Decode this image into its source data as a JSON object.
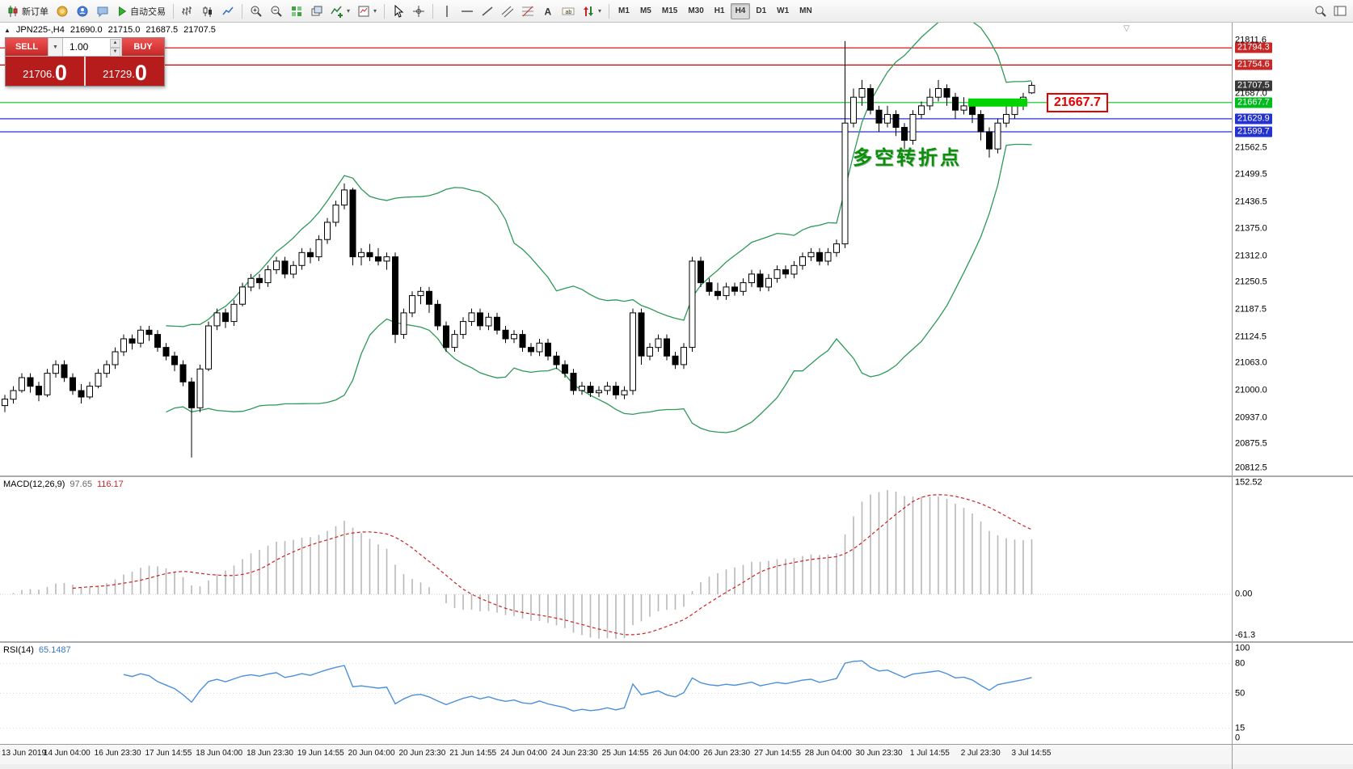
{
  "toolbar": {
    "new_order": "新订单",
    "autotrading": "自动交易",
    "timeframes": [
      "M1",
      "M5",
      "M15",
      "M30",
      "H1",
      "H4",
      "D1",
      "W1",
      "MN"
    ],
    "active_timeframe": "H4"
  },
  "info": {
    "symbol": "JPN225-,H4",
    "open": "21690.0",
    "high": "21715.0",
    "low": "21687.5",
    "close": "21707.5"
  },
  "trade": {
    "sell_label": "SELL",
    "buy_label": "BUY",
    "volume": "1.00",
    "sell_price_small": "21706.",
    "sell_price_big": "0",
    "buy_price_small": "21729.",
    "buy_price_big": "0"
  },
  "annotation": {
    "text": "多空转折点"
  },
  "callout": {
    "text": "21667.7"
  },
  "macd": {
    "name": "MACD(12,26,9)",
    "main_value": "97.65",
    "signal_value": "116.17",
    "scale": [
      {
        "text": "152.52",
        "value": 152.52
      },
      {
        "text": "0.00",
        "value": 0
      },
      {
        "text": "-61.3",
        "value": -61.3
      }
    ]
  },
  "rsi": {
    "name": "RSI(14)",
    "value": "65.1487",
    "scale": [
      {
        "text": "100",
        "value": 100
      },
      {
        "text": "80",
        "value": 80
      },
      {
        "text": "50",
        "value": 50
      },
      {
        "text": "15",
        "value": 15
      },
      {
        "text": "0",
        "value": 0
      }
    ]
  },
  "price_scale": {
    "labels": [
      {
        "value": "21811.6",
        "price": 21811.6,
        "type": "plain"
      },
      {
        "value": "21794.3",
        "price": 21794.3,
        "type": "red"
      },
      {
        "value": "21754.6",
        "price": 21754.6,
        "type": "red"
      },
      {
        "value": "21707.5",
        "price": 21707.5,
        "type": "dark"
      },
      {
        "value": "21687.0",
        "price": 21687.0,
        "type": "plain"
      },
      {
        "value": "21667.7",
        "price": 21667.7,
        "type": "green"
      },
      {
        "value": "21629.9",
        "price": 21629.9,
        "type": "blue"
      },
      {
        "value": "21599.7",
        "price": 21599.7,
        "type": "blue"
      },
      {
        "value": "21562.5",
        "price": 21562.5,
        "type": "plain"
      },
      {
        "value": "21499.5",
        "price": 21499.5,
        "type": "plain"
      },
      {
        "value": "21436.5",
        "price": 21436.5,
        "type": "plain"
      },
      {
        "value": "21375.0",
        "price": 21375.0,
        "type": "plain"
      },
      {
        "value": "21312.0",
        "price": 21312.0,
        "type": "plain"
      },
      {
        "value": "21250.5",
        "price": 21250.5,
        "type": "plain"
      },
      {
        "value": "21187.5",
        "price": 21187.5,
        "type": "plain"
      },
      {
        "value": "21124.5",
        "price": 21124.5,
        "type": "plain"
      },
      {
        "value": "21063.0",
        "price": 21063.0,
        "type": "plain"
      },
      {
        "value": "21000.0",
        "price": 21000.0,
        "type": "plain"
      },
      {
        "value": "20937.0",
        "price": 20937.0,
        "type": "plain"
      },
      {
        "value": "20875.5",
        "price": 20875.5,
        "type": "plain"
      },
      {
        "value": "20812.5",
        "price": 20812.5,
        "type": "plain"
      }
    ]
  },
  "time_axis": {
    "labels": [
      "13 Jun 2019",
      "14 Jun 04:00",
      "16 Jun 23:30",
      "17 Jun 14:55",
      "18 Jun 04:00",
      "18 Jun 23:30",
      "19 Jun 14:55",
      "20 Jun 04:00",
      "20 Jun 23:30",
      "21 Jun 14:55",
      "24 Jun 04:00",
      "24 Jun 23:30",
      "25 Jun 14:55",
      "26 Jun 04:00",
      "26 Jun 23:30",
      "27 Jun 14:55",
      "28 Jun 04:00",
      "30 Jun 23:30",
      "1 Jul 14:55",
      "2 Jul 23:30",
      "3 Jul 14:55"
    ]
  },
  "chart_data": {
    "type": "candlestick",
    "symbol": "JPN225-",
    "timeframe": "H4",
    "ylim": [
      20812.5,
      21811.6
    ],
    "indicators": [
      {
        "name": "Bollinger Bands",
        "period": 20,
        "deviation": 2
      },
      {
        "name": "MACD",
        "params": "12,26,9"
      },
      {
        "name": "RSI",
        "params": "14"
      }
    ],
    "colors": {
      "up_candle": "#ffffff",
      "down_candle": "#000000",
      "candle_outline": "#000000",
      "bands": "#2e9958",
      "macd_hist": "#b8b8b8",
      "macd_signal": "#cc2222",
      "rsi_line": "#4a90d9",
      "resistance_line": "#cc0000",
      "pivot_line": "#00c020",
      "support_line": "#2433cd",
      "highlight_zone": "#00d400"
    },
    "hlines": [
      {
        "price": 21794.3,
        "color": "#cc0000"
      },
      {
        "price": 21754.6,
        "color": "#cc0000"
      },
      {
        "price": 21667.7,
        "color": "#00c020"
      },
      {
        "price": 21629.9,
        "color": "#2433cd"
      },
      {
        "price": 21599.7,
        "color": "#2433cd"
      }
    ],
    "highlight_zone": {
      "price": 21667.7,
      "from_bar": 114,
      "to_bar": 120
    },
    "ohlc": [
      [
        20965,
        20990,
        20950,
        20980
      ],
      [
        20980,
        21010,
        20970,
        21000
      ],
      [
        21000,
        21040,
        20995,
        21030
      ],
      [
        21030,
        21040,
        20995,
        21010
      ],
      [
        21010,
        21020,
        20975,
        20990
      ],
      [
        20990,
        21050,
        20985,
        21040
      ],
      [
        21040,
        21070,
        21030,
        21060
      ],
      [
        21060,
        21070,
        21020,
        21030
      ],
      [
        21030,
        21040,
        20990,
        21000
      ],
      [
        21000,
        21015,
        20970,
        20985
      ],
      [
        20985,
        21020,
        20980,
        21010
      ],
      [
        21010,
        21050,
        21005,
        21040
      ],
      [
        21040,
        21070,
        21030,
        21060
      ],
      [
        21060,
        21100,
        21050,
        21090
      ],
      [
        21090,
        21130,
        21080,
        21120
      ],
      [
        21120,
        21130,
        21095,
        21110
      ],
      [
        21110,
        21150,
        21100,
        21140
      ],
      [
        21140,
        21150,
        21115,
        21130
      ],
      [
        21130,
        21140,
        21090,
        21100
      ],
      [
        21100,
        21110,
        21070,
        21080
      ],
      [
        21080,
        21090,
        21045,
        21060
      ],
      [
        21060,
        21070,
        21010,
        21020
      ],
      [
        21020,
        21030,
        20845,
        20960
      ],
      [
        20960,
        21060,
        20950,
        21050
      ],
      [
        21050,
        21160,
        21045,
        21150
      ],
      [
        21150,
        21190,
        21140,
        21180
      ],
      [
        21180,
        21190,
        21145,
        21160
      ],
      [
        21160,
        21210,
        21150,
        21200
      ],
      [
        21200,
        21250,
        21195,
        21240
      ],
      [
        21240,
        21270,
        21230,
        21260
      ],
      [
        21260,
        21270,
        21235,
        21250
      ],
      [
        21250,
        21290,
        21240,
        21280
      ],
      [
        21280,
        21310,
        21270,
        21300
      ],
      [
        21300,
        21310,
        21260,
        21270
      ],
      [
        21270,
        21300,
        21260,
        21290
      ],
      [
        21290,
        21330,
        21280,
        21320
      ],
      [
        21320,
        21330,
        21295,
        21310
      ],
      [
        21310,
        21360,
        21300,
        21350
      ],
      [
        21350,
        21400,
        21340,
        21390
      ],
      [
        21390,
        21440,
        21380,
        21430
      ],
      [
        21430,
        21480,
        21420,
        21465
      ],
      [
        21465,
        21470,
        21290,
        21310
      ],
      [
        21310,
        21330,
        21290,
        21320
      ],
      [
        21320,
        21340,
        21300,
        21310
      ],
      [
        21310,
        21330,
        21290,
        21300
      ],
      [
        21300,
        21320,
        21280,
        21310
      ],
      [
        21310,
        21320,
        21110,
        21130
      ],
      [
        21130,
        21190,
        21120,
        21180
      ],
      [
        21180,
        21230,
        21170,
        21220
      ],
      [
        21220,
        21240,
        21200,
        21230
      ],
      [
        21230,
        21240,
        21180,
        21200
      ],
      [
        21200,
        21210,
        21140,
        21150
      ],
      [
        21150,
        21160,
        21090,
        21100
      ],
      [
        21100,
        21140,
        21090,
        21130
      ],
      [
        21130,
        21170,
        21120,
        21160
      ],
      [
        21160,
        21190,
        21150,
        21180
      ],
      [
        21180,
        21190,
        21140,
        21150
      ],
      [
        21150,
        21180,
        21140,
        21170
      ],
      [
        21170,
        21180,
        21130,
        21140
      ],
      [
        21140,
        21150,
        21110,
        21120
      ],
      [
        21120,
        21140,
        21110,
        21130
      ],
      [
        21130,
        21140,
        21090,
        21100
      ],
      [
        21100,
        21110,
        21080,
        21090
      ],
      [
        21090,
        21120,
        21080,
        21110
      ],
      [
        21110,
        21120,
        21070,
        21080
      ],
      [
        21080,
        21090,
        21050,
        21060
      ],
      [
        21060,
        21070,
        21030,
        21040
      ],
      [
        21040,
        21050,
        20990,
        21000
      ],
      [
        21000,
        21020,
        20990,
        21010
      ],
      [
        21010,
        21020,
        20985,
        20995
      ],
      [
        20995,
        21010,
        20985,
        21000
      ],
      [
        21000,
        21020,
        20990,
        21010
      ],
      [
        21010,
        21020,
        20980,
        20990
      ],
      [
        20990,
        21010,
        20980,
        21000
      ],
      [
        21000,
        21190,
        20990,
        21180
      ],
      [
        21180,
        21190,
        21060,
        21080
      ],
      [
        21080,
        21110,
        21070,
        21100
      ],
      [
        21100,
        21130,
        21090,
        21120
      ],
      [
        21120,
        21130,
        21070,
        21080
      ],
      [
        21080,
        21090,
        21050,
        21060
      ],
      [
        21060,
        21110,
        21050,
        21100
      ],
      [
        21100,
        21310,
        21090,
        21300
      ],
      [
        21300,
        21310,
        21240,
        21250
      ],
      [
        21250,
        21260,
        21220,
        21230
      ],
      [
        21230,
        21250,
        21210,
        21220
      ],
      [
        21220,
        21250,
        21210,
        21240
      ],
      [
        21240,
        21250,
        21220,
        21230
      ],
      [
        21230,
        21260,
        21220,
        21250
      ],
      [
        21250,
        21280,
        21240,
        21270
      ],
      [
        21270,
        21280,
        21230,
        21240
      ],
      [
        21240,
        21270,
        21230,
        21260
      ],
      [
        21260,
        21290,
        21250,
        21280
      ],
      [
        21280,
        21290,
        21260,
        21270
      ],
      [
        21270,
        21300,
        21260,
        21290
      ],
      [
        21290,
        21320,
        21280,
        21310
      ],
      [
        21310,
        21330,
        21300,
        21320
      ],
      [
        21320,
        21330,
        21290,
        21300
      ],
      [
        21300,
        21330,
        21290,
        21320
      ],
      [
        21320,
        21350,
        21310,
        21340
      ],
      [
        21340,
        21810,
        21330,
        21620
      ],
      [
        21620,
        21700,
        21610,
        21680
      ],
      [
        21680,
        21720,
        21660,
        21700
      ],
      [
        21700,
        21710,
        21640,
        21650
      ],
      [
        21650,
        21660,
        21600,
        21620
      ],
      [
        21620,
        21660,
        21610,
        21640
      ],
      [
        21640,
        21650,
        21590,
        21610
      ],
      [
        21610,
        21620,
        21560,
        21580
      ],
      [
        21580,
        21650,
        21570,
        21640
      ],
      [
        21640,
        21670,
        21630,
        21660
      ],
      [
        21660,
        21700,
        21650,
        21680
      ],
      [
        21680,
        21720,
        21670,
        21700
      ],
      [
        21700,
        21710,
        21660,
        21680
      ],
      [
        21680,
        21690,
        21630,
        21650
      ],
      [
        21650,
        21680,
        21640,
        21660
      ],
      [
        21660,
        21670,
        21620,
        21640
      ],
      [
        21640,
        21650,
        21580,
        21600
      ],
      [
        21600,
        21610,
        21540,
        21560
      ],
      [
        21560,
        21630,
        21550,
        21620
      ],
      [
        21620,
        21660,
        21610,
        21640
      ],
      [
        21640,
        21670,
        21630,
        21660
      ],
      [
        21660,
        21690,
        21650,
        21680
      ],
      [
        21690,
        21715,
        21687.5,
        21707.5
      ]
    ]
  }
}
